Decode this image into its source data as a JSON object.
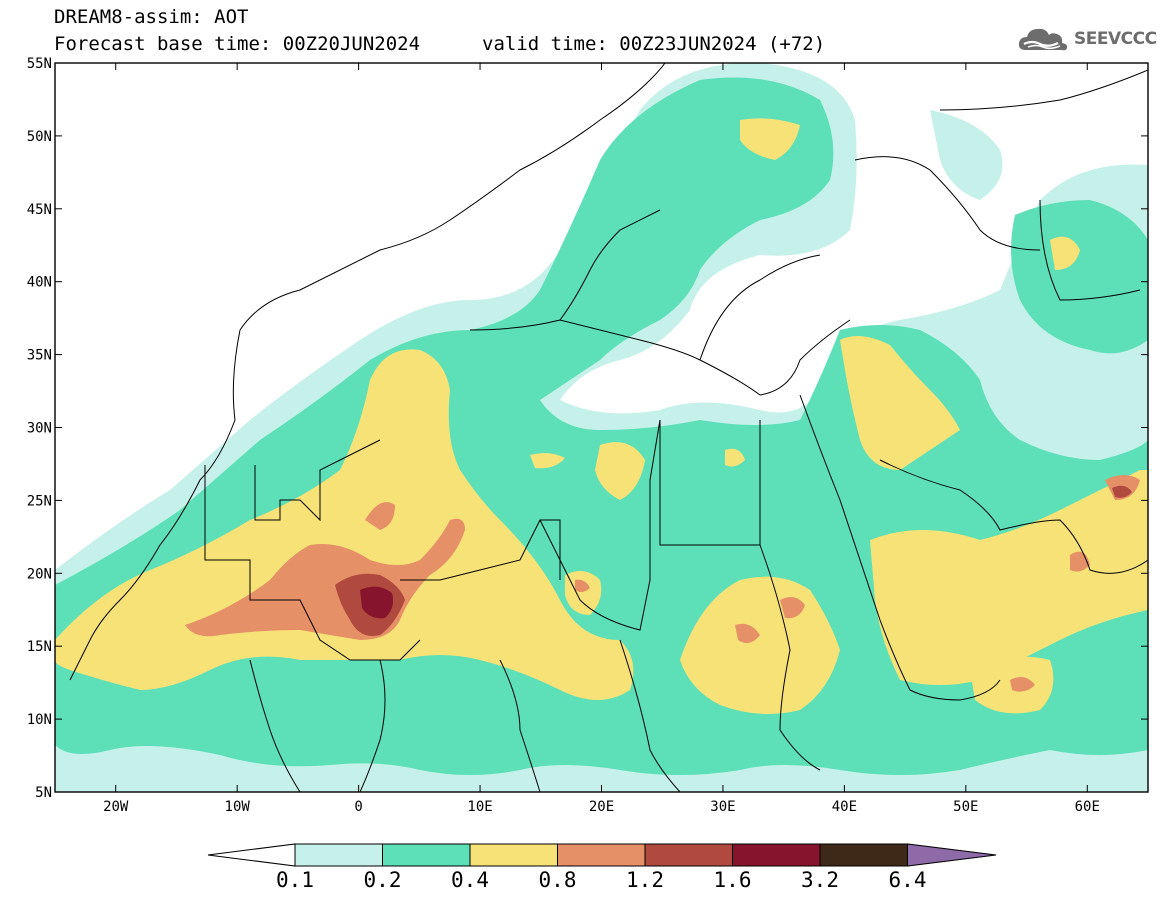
{
  "header": {
    "title": "DREAM8-assim: AOT",
    "base_time_label": "Forecast base time: 00Z20JUN2024",
    "valid_time_label": "valid time: 00Z23JUN2024 (+72)"
  },
  "logo": {
    "text": "SEEVCCC",
    "icon": "cloud-icon"
  },
  "map": {
    "lon_range": [
      -25,
      65
    ],
    "lat_range": [
      5,
      55
    ],
    "lat_ticks": [
      "5N",
      "10N",
      "15N",
      "20N",
      "25N",
      "30N",
      "35N",
      "40N",
      "45N",
      "50N",
      "55N"
    ],
    "lon_ticks": [
      "20W",
      "10W",
      "0",
      "10E",
      "20E",
      "30E",
      "40E",
      "50E",
      "60E"
    ]
  },
  "colorbar": {
    "labels": [
      "0.1",
      "0.2",
      "0.4",
      "0.8",
      "1.2",
      "1.6",
      "3.2",
      "6.4"
    ],
    "colors": [
      "#ffffff",
      "#c6f1ea",
      "#5de0b7",
      "#f7e278",
      "#e69067",
      "#b04a3e",
      "#85142c",
      "#3e2818",
      "#8e6aa8"
    ]
  }
}
